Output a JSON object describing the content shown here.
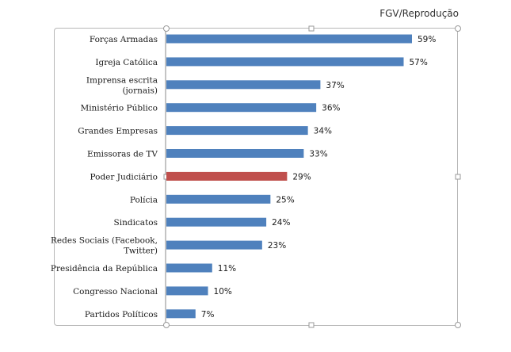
{
  "source_credit": "FGV/Reprodução",
  "chart_data": {
    "type": "bar",
    "orientation": "horizontal",
    "title": "",
    "xlabel": "",
    "ylabel": "",
    "xlim": [
      0,
      65
    ],
    "grid": false,
    "categories": [
      [
        "Forças Armadas"
      ],
      [
        "Igreja Católica"
      ],
      [
        "Imprensa escrita",
        "(jornais)"
      ],
      [
        "Ministério Público"
      ],
      [
        "Grandes Empresas"
      ],
      [
        "Emissoras de TV"
      ],
      [
        "Poder Judiciário"
      ],
      [
        "Polícia"
      ],
      [
        "Sindicatos"
      ],
      [
        "Redes Sociais (Facebook,",
        "Twitter)"
      ],
      [
        "Presidência da República"
      ],
      [
        "Congresso Nacional"
      ],
      [
        "Partidos Políticos"
      ]
    ],
    "values": [
      59,
      57,
      37,
      36,
      34,
      33,
      29,
      25,
      24,
      23,
      11,
      10,
      7
    ],
    "value_labels": [
      "59%",
      "57%",
      "37%",
      "36%",
      "34%",
      "33%",
      "29%",
      "25%",
      "24%",
      "23%",
      "11%",
      "10%",
      "7%"
    ],
    "bar_color": "#4f81bd",
    "highlight_color": "#c0504d",
    "highlight_index": 6
  }
}
